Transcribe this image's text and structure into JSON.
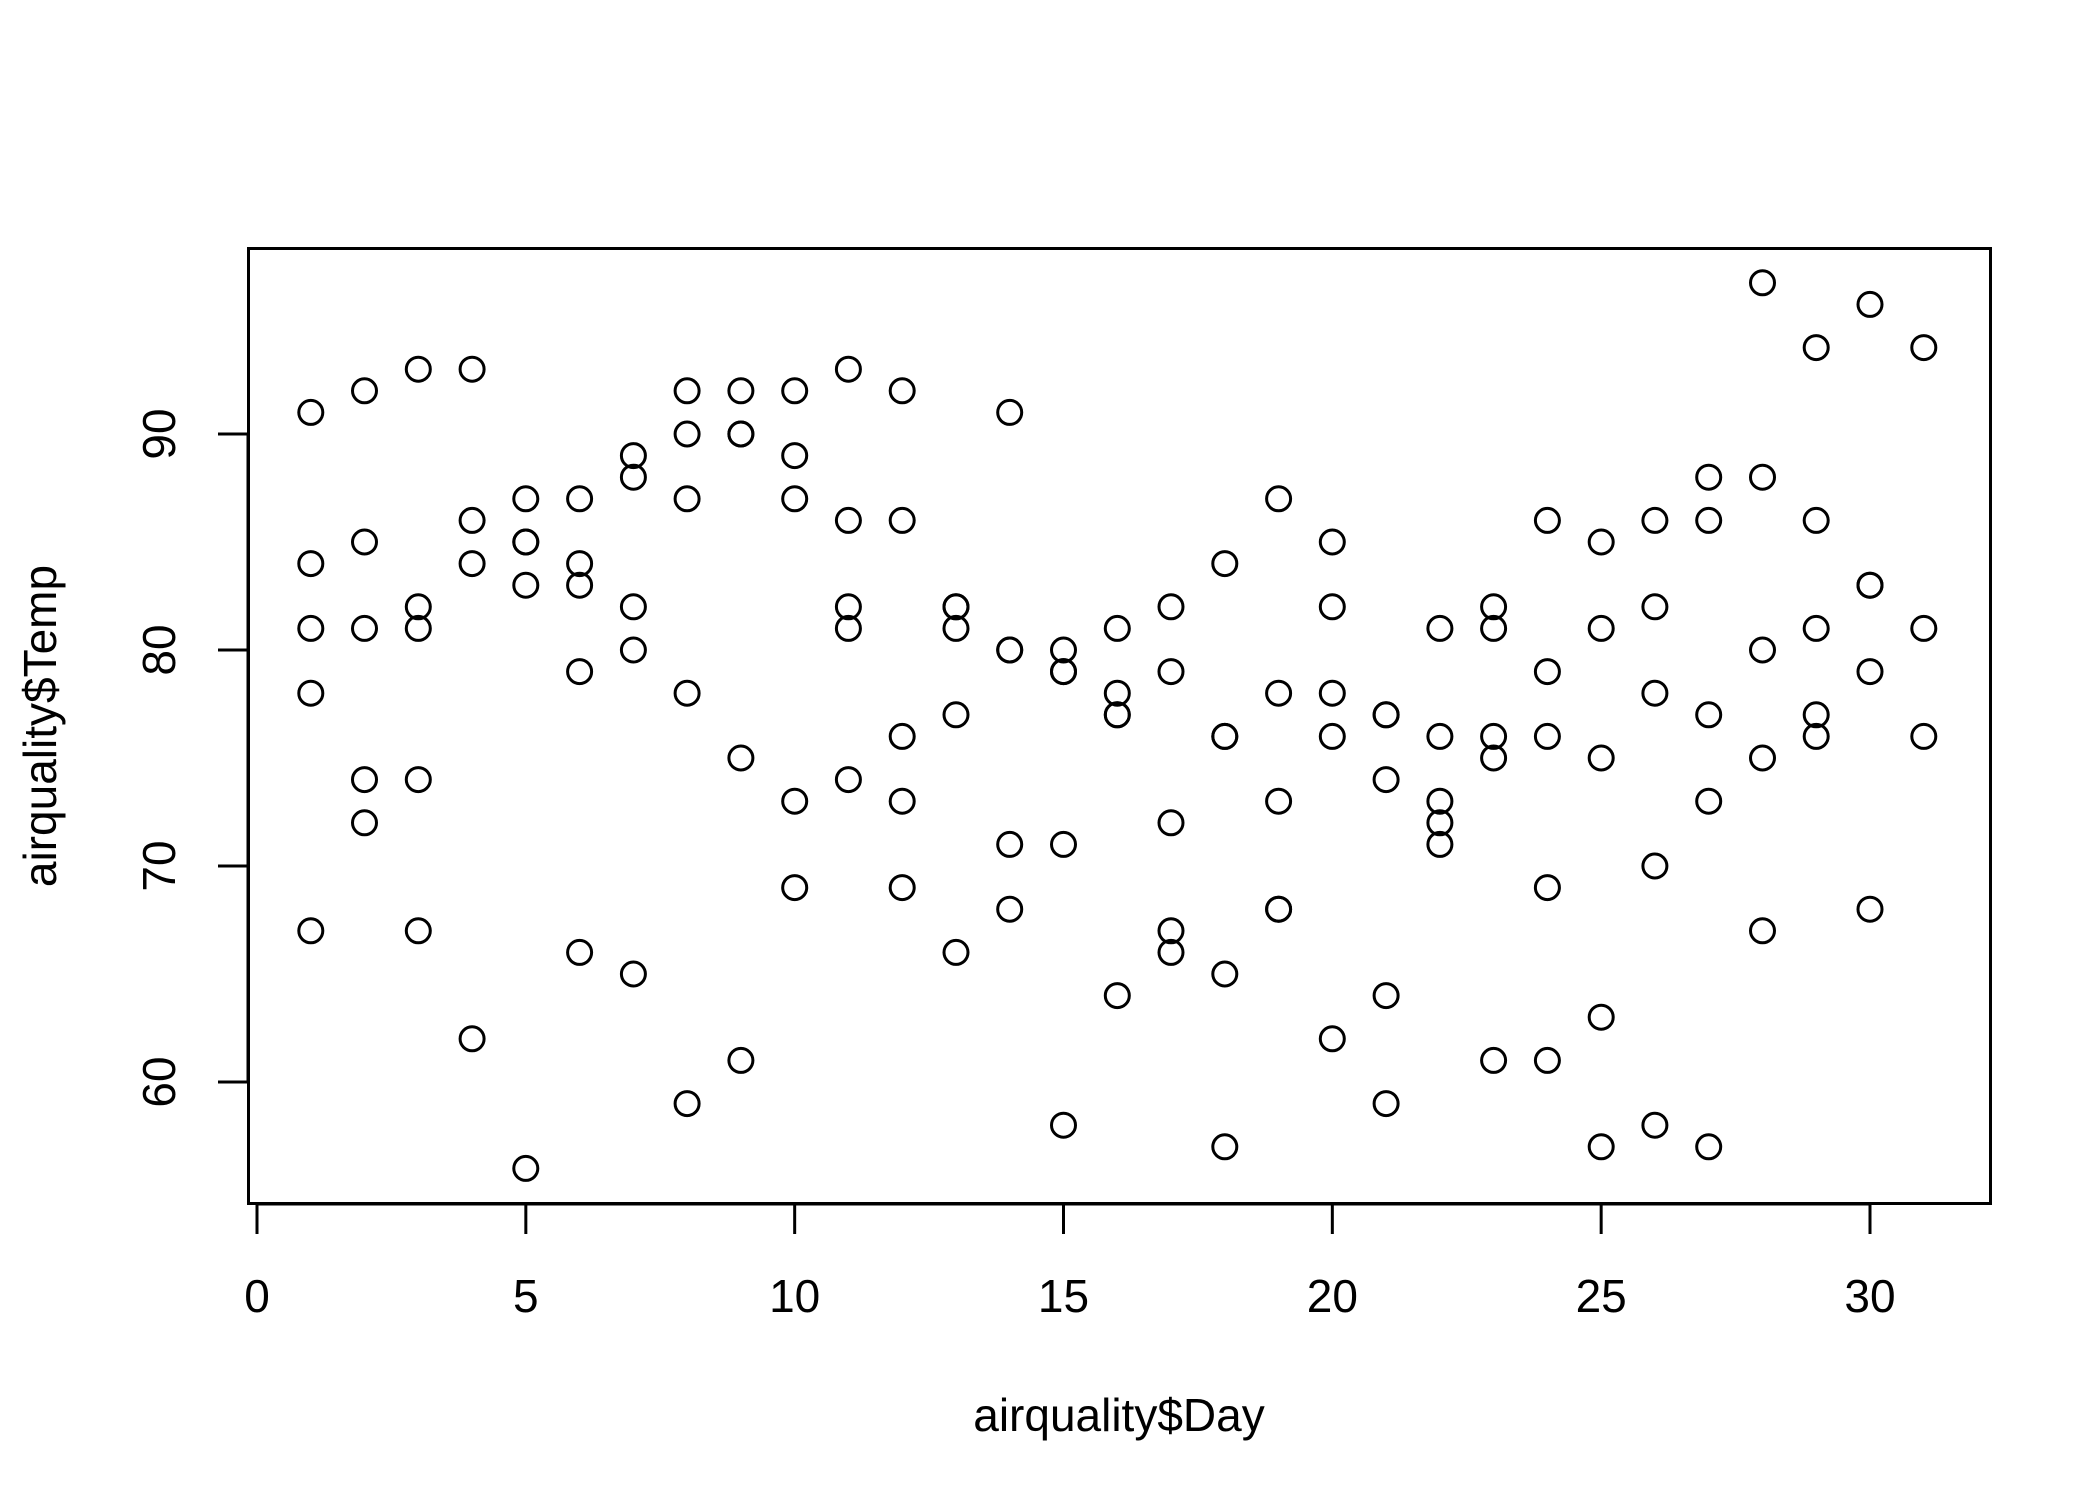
{
  "chart_data": {
    "type": "scatter",
    "title": "",
    "xlabel": "airquality$Day",
    "ylabel": "airquality$Temp",
    "xlim": [
      0,
      31
    ],
    "ylim": [
      56,
      97
    ],
    "x_ticks": [
      0,
      5,
      10,
      15,
      20,
      25,
      30
    ],
    "y_ticks": [
      60,
      70,
      80,
      90
    ],
    "x_tick_labels": [
      "0",
      "5",
      "10",
      "15",
      "20",
      "25",
      "30"
    ],
    "y_tick_labels": [
      "60",
      "70",
      "80",
      "90"
    ],
    "grid": false,
    "marker": "open-circle",
    "point_color": "#000000",
    "series": [
      {
        "x": [
          1,
          1,
          1,
          1,
          1,
          2,
          2,
          2,
          2,
          2,
          3,
          3,
          3,
          3,
          3,
          4,
          4,
          4,
          4,
          5,
          5,
          5,
          5,
          5,
          6,
          6,
          6,
          6,
          6,
          7,
          7,
          7,
          7,
          7,
          8,
          8,
          8,
          8,
          8,
          9,
          9,
          9,
          9,
          9,
          10,
          10,
          10,
          10,
          10,
          11,
          11,
          11,
          11,
          11,
          12,
          12,
          12,
          12,
          12,
          13,
          13,
          13,
          13,
          13,
          14,
          14,
          14,
          14,
          14,
          15,
          15,
          15,
          15,
          15,
          16,
          16,
          16,
          16,
          16,
          17,
          17,
          17,
          17,
          17,
          18,
          18,
          18,
          18,
          18,
          19,
          19,
          19,
          19,
          19,
          20,
          20,
          20,
          20,
          20,
          21,
          21,
          21,
          21,
          21,
          22,
          22,
          22,
          22,
          22,
          23,
          23,
          23,
          23,
          23,
          24,
          24,
          24,
          24,
          24,
          25,
          25,
          25,
          25,
          25,
          26,
          26,
          26,
          26,
          26,
          27,
          27,
          27,
          27,
          27,
          28,
          28,
          28,
          28,
          28,
          29,
          29,
          29,
          29,
          29,
          30,
          30,
          30,
          30,
          30,
          31,
          31,
          31
        ],
        "y": [
          67,
          78,
          84,
          91,
          81,
          72,
          74,
          85,
          92,
          81,
          74,
          67,
          93,
          81,
          82,
          62,
          84,
          86,
          93,
          56,
          85,
          87,
          83,
          85,
          66,
          79,
          87,
          84,
          83,
          65,
          82,
          89,
          88,
          80,
          59,
          78,
          90,
          92,
          87,
          61,
          75,
          92,
          90,
          90,
          69,
          73,
          89,
          92,
          87,
          74,
          81,
          86,
          82,
          93,
          69,
          76,
          92,
          86,
          73,
          66,
          77,
          82,
          82,
          81,
          68,
          71,
          91,
          80,
          80,
          58,
          71,
          79,
          80,
          79,
          64,
          81,
          77,
          78,
          77,
          66,
          82,
          72,
          79,
          67,
          57,
          84,
          76,
          76,
          65,
          68,
          87,
          78,
          73,
          68,
          62,
          85,
          76,
          82,
          78,
          59,
          74,
          77,
          64,
          77,
          73,
          81,
          72,
          76,
          71,
          61,
          82,
          75,
          81,
          76,
          61,
          86,
          76,
          79,
          69,
          57,
          85,
          81,
          75,
          63,
          58,
          82,
          86,
          78,
          70,
          57,
          88,
          77,
          86,
          73,
          67,
          97,
          75,
          88,
          80,
          76,
          94,
          81,
          86,
          77,
          68,
          96,
          83,
          79,
          83,
          81,
          94,
          76
        ]
      }
    ]
  }
}
